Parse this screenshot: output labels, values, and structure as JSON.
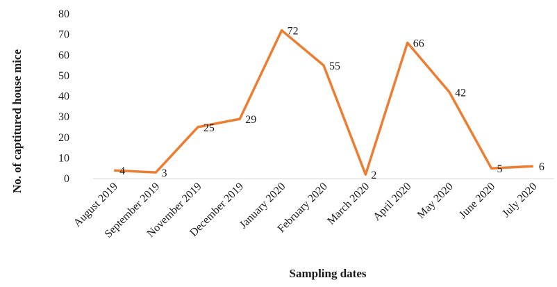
{
  "chart_data": {
    "type": "line",
    "xlabel": "Sampling dates",
    "ylabel": "No. of  captitured house mice",
    "categories": [
      "August 2019",
      "September 2019",
      "November 2019",
      "December 2019",
      "January 2020",
      "February 2020",
      "March 2020",
      "April 2020",
      "May 2020",
      "June 2020",
      "July 2020"
    ],
    "series": [
      {
        "values": [
          4,
          3,
          25,
          29,
          72,
          55,
          2,
          66,
          42,
          5,
          6
        ]
      }
    ],
    "data_labels": [
      "4",
      "3",
      "25",
      "29",
      "72",
      "55",
      "2",
      "66",
      "42",
      "5",
      "6"
    ],
    "ylim": [
      0,
      80
    ],
    "yticks": [
      0,
      10,
      20,
      30,
      40,
      50,
      60,
      70,
      80
    ],
    "ytick_labels": [
      "0",
      "10",
      "20",
      "30",
      "40",
      "50",
      "60",
      "70",
      "80"
    ],
    "grid": false,
    "legend": "none",
    "colors": {
      "line": "#ED7D31",
      "axis": "#d9d9d9"
    }
  }
}
